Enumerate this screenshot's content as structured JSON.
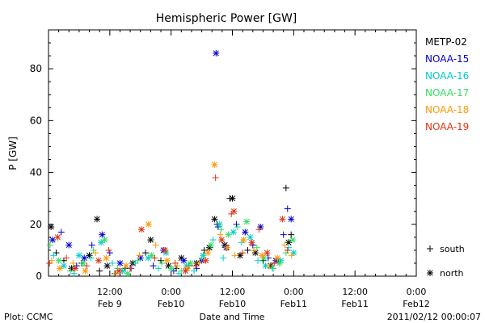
{
  "chart_data": {
    "type": "scatter",
    "title": "Hemispheric Power [GW]",
    "xlabel": "Date and Time",
    "ylabel": "P [GW]",
    "ylim": [
      0,
      95
    ],
    "xlim": [
      0,
      72
    ],
    "y_ticks": [
      0,
      20,
      40,
      60,
      80
    ],
    "x_ticks": [
      {
        "x": 12,
        "top": "12:00",
        "bottom": "Feb 9"
      },
      {
        "x": 24,
        "top": "0:00",
        "bottom": "Feb10"
      },
      {
        "x": 36,
        "top": "12:00",
        "bottom": "Feb10"
      },
      {
        "x": 48,
        "top": "0:00",
        "bottom": "Feb11"
      },
      {
        "x": 60,
        "top": "12:00",
        "bottom": "Feb11"
      },
      {
        "x": 72,
        "top": "0:00",
        "bottom": "Feb12"
      }
    ],
    "x_units": "hours from 2011-02-09 00:00 UT",
    "grid": false,
    "legend_position": "right",
    "symbol_legend": [
      {
        "symbol": "+",
        "label": "south"
      },
      {
        "symbol": "*",
        "label": "north"
      }
    ],
    "series": [
      {
        "name": "METP-02",
        "color": "#000000",
        "points": [
          [
            0.5,
            19,
            "*"
          ],
          [
            1.5,
            9,
            "+"
          ],
          [
            3,
            6,
            "+"
          ],
          [
            4.5,
            3,
            "*"
          ],
          [
            6.5,
            5,
            "+"
          ],
          [
            8,
            8,
            "*"
          ],
          [
            9.5,
            22,
            "*"
          ],
          [
            10,
            2,
            "+"
          ],
          [
            11.5,
            4,
            "*"
          ],
          [
            13,
            1,
            "+"
          ],
          [
            15,
            3,
            "+"
          ],
          [
            16.5,
            5,
            "*"
          ],
          [
            19,
            9,
            "+"
          ],
          [
            20,
            14,
            "*"
          ],
          [
            22,
            6,
            "+"
          ],
          [
            23.5,
            4,
            "*"
          ],
          [
            25,
            3,
            "+"
          ],
          [
            26,
            7,
            "*"
          ],
          [
            27.5,
            4,
            "+"
          ],
          [
            29,
            5,
            "*"
          ],
          [
            30.5,
            10,
            "+"
          ],
          [
            31.5,
            11,
            "*"
          ],
          [
            32.5,
            22,
            "*"
          ],
          [
            33,
            20,
            "+"
          ],
          [
            34.5,
            12,
            "*"
          ],
          [
            35.5,
            30,
            "+"
          ],
          [
            36,
            30,
            "*"
          ],
          [
            37.5,
            8,
            "*"
          ],
          [
            39,
            10,
            "+"
          ],
          [
            40.5,
            9,
            "*"
          ],
          [
            42,
            6,
            "+"
          ],
          [
            43.5,
            4,
            "*"
          ],
          [
            45,
            6,
            "+"
          ],
          [
            46.5,
            34,
            "+"
          ],
          [
            47,
            13,
            "*"
          ],
          [
            47.5,
            16,
            "+"
          ]
        ]
      },
      {
        "name": "NOAA-15",
        "color": "#0000cc",
        "points": [
          [
            0.8,
            14,
            "*"
          ],
          [
            2.5,
            17,
            "+"
          ],
          [
            4,
            12,
            "*"
          ],
          [
            5.5,
            4,
            "+"
          ],
          [
            7,
            7,
            "*"
          ],
          [
            8.5,
            12,
            "+"
          ],
          [
            10.5,
            16,
            "*"
          ],
          [
            12,
            9,
            "+"
          ],
          [
            14,
            5,
            "*"
          ],
          [
            16,
            3,
            "+"
          ],
          [
            18,
            7,
            "*"
          ],
          [
            20.5,
            4,
            "+"
          ],
          [
            22.5,
            10,
            "*"
          ],
          [
            24.5,
            2,
            "+"
          ],
          [
            26.5,
            6,
            "*"
          ],
          [
            29,
            3,
            "+"
          ],
          [
            30,
            6,
            "*"
          ],
          [
            32.8,
            86,
            "*"
          ],
          [
            33.2,
            19,
            "+"
          ],
          [
            34.8,
            11,
            "*"
          ],
          [
            36.8,
            20,
            "+"
          ],
          [
            38.5,
            17,
            "*"
          ],
          [
            40,
            12,
            "+"
          ],
          [
            41.5,
            19,
            "*"
          ],
          [
            43,
            7,
            "+"
          ],
          [
            44.5,
            6,
            "*"
          ],
          [
            46,
            16,
            "+"
          ],
          [
            46.8,
            26,
            "+"
          ],
          [
            47.5,
            22,
            "*"
          ]
        ]
      },
      {
        "name": "NOAA-16",
        "color": "#00cccc",
        "points": [
          [
            1,
            8,
            "+"
          ],
          [
            3,
            4,
            "*"
          ],
          [
            5,
            1,
            "+"
          ],
          [
            6,
            8,
            "*"
          ],
          [
            8.3,
            7,
            "+"
          ],
          [
            10.3,
            13,
            "*"
          ],
          [
            12.5,
            5,
            "+"
          ],
          [
            14.5,
            2,
            "*"
          ],
          [
            17,
            5,
            "+"
          ],
          [
            19.5,
            7,
            "*"
          ],
          [
            21.5,
            3,
            "+"
          ],
          [
            23,
            9,
            "*"
          ],
          [
            25.5,
            1,
            "+"
          ],
          [
            27,
            4,
            "*"
          ],
          [
            28.5,
            2,
            "+"
          ],
          [
            30.3,
            8,
            "*"
          ],
          [
            32.2,
            14,
            "+"
          ],
          [
            33.5,
            20,
            "*"
          ],
          [
            34.2,
            7,
            "+"
          ],
          [
            36.2,
            17,
            "*"
          ],
          [
            37.8,
            13,
            "+"
          ],
          [
            39.5,
            15,
            "*"
          ],
          [
            41,
            6,
            "+"
          ],
          [
            42.5,
            4,
            "*"
          ],
          [
            44,
            3,
            "+"
          ],
          [
            45.5,
            6,
            "*"
          ],
          [
            47,
            11,
            "+"
          ],
          [
            48,
            9,
            "*"
          ]
        ]
      },
      {
        "name": "NOAA-17",
        "color": "#33dd66",
        "points": [
          [
            0.3,
            12,
            "+"
          ],
          [
            2,
            6,
            "*"
          ],
          [
            4.3,
            2,
            "+"
          ],
          [
            6.8,
            5,
            "*"
          ],
          [
            8.8,
            10,
            "+"
          ],
          [
            11,
            14,
            "*"
          ],
          [
            13.5,
            3,
            "+"
          ],
          [
            15.5,
            1,
            "*"
          ],
          [
            17.5,
            6,
            "+"
          ],
          [
            20.2,
            8,
            "*"
          ],
          [
            22.2,
            5,
            "+"
          ],
          [
            24,
            3,
            "*"
          ],
          [
            26,
            2,
            "+"
          ],
          [
            27.8,
            5,
            "*"
          ],
          [
            30,
            7,
            "+"
          ],
          [
            31.8,
            12,
            "*"
          ],
          [
            33.8,
            18,
            "+"
          ],
          [
            35.2,
            16,
            "*"
          ],
          [
            37,
            19,
            "+"
          ],
          [
            38.8,
            21,
            "*"
          ],
          [
            40.8,
            11,
            "+"
          ],
          [
            42.2,
            7,
            "*"
          ],
          [
            43.8,
            3,
            "+"
          ],
          [
            45.2,
            5,
            "*"
          ],
          [
            46.5,
            9,
            "+"
          ],
          [
            47.8,
            14,
            "*"
          ]
        ]
      },
      {
        "name": "NOAA-18",
        "color": "#ff9900",
        "points": [
          [
            0.6,
            6,
            "+"
          ],
          [
            2.2,
            3,
            "*"
          ],
          [
            4.8,
            5,
            "+"
          ],
          [
            7.2,
            2,
            "*"
          ],
          [
            9.2,
            9,
            "+"
          ],
          [
            11.3,
            7,
            "*"
          ],
          [
            13.2,
            1,
            "+"
          ],
          [
            15.2,
            4,
            "*"
          ],
          [
            17.8,
            8,
            "+"
          ],
          [
            19.6,
            20,
            "*"
          ],
          [
            21,
            12,
            "+"
          ],
          [
            23.2,
            6,
            "*"
          ],
          [
            25.2,
            4,
            "+"
          ],
          [
            27.2,
            3,
            "*"
          ],
          [
            29.5,
            5,
            "+"
          ],
          [
            31.2,
            9,
            "*"
          ],
          [
            32.5,
            43,
            "*"
          ],
          [
            33.6,
            16,
            "+"
          ],
          [
            35,
            11,
            "*"
          ],
          [
            36.5,
            8,
            "+"
          ],
          [
            38.2,
            14,
            "*"
          ],
          [
            40.2,
            10,
            "+"
          ],
          [
            41.8,
            8,
            "*"
          ],
          [
            43.2,
            4,
            "+"
          ],
          [
            44.8,
            7,
            "*"
          ],
          [
            46.2,
            12,
            "+"
          ],
          [
            47.6,
            8,
            "+"
          ]
        ]
      },
      {
        "name": "NOAA-19",
        "color": "#dd3311",
        "points": [
          [
            0.2,
            5,
            "+"
          ],
          [
            1.8,
            15,
            "*"
          ],
          [
            3.5,
            7,
            "+"
          ],
          [
            5.2,
            3,
            "*"
          ],
          [
            7.5,
            4,
            "+"
          ],
          [
            9.8,
            6,
            "*"
          ],
          [
            11.8,
            10,
            "+"
          ],
          [
            13.8,
            2,
            "*"
          ],
          [
            16.2,
            3,
            "+"
          ],
          [
            18.2,
            18,
            "*"
          ],
          [
            20.8,
            7,
            "+"
          ],
          [
            22.8,
            10,
            "*"
          ],
          [
            24.8,
            5,
            "+"
          ],
          [
            26.8,
            2,
            "*"
          ],
          [
            28.8,
            4,
            "+"
          ],
          [
            30.8,
            6,
            "*"
          ],
          [
            32.7,
            38,
            "+"
          ],
          [
            33.9,
            14,
            "*"
          ],
          [
            35.8,
            24,
            "+"
          ],
          [
            36.3,
            25,
            "*"
          ],
          [
            38,
            9,
            "+"
          ],
          [
            39.8,
            13,
            "*"
          ],
          [
            41.2,
            18,
            "+"
          ],
          [
            42.8,
            9,
            "*"
          ],
          [
            44.2,
            5,
            "+"
          ],
          [
            45.8,
            22,
            "*"
          ],
          [
            46.8,
            10,
            "+"
          ]
        ]
      }
    ]
  },
  "footer": {
    "plot_credit": "Plot: CCMC",
    "timestamp": "2011/02/12 00:00:07"
  }
}
